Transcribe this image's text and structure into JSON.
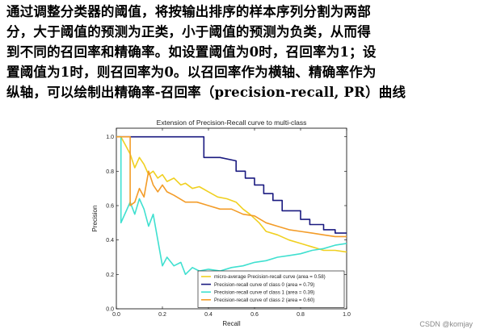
{
  "intro": {
    "lines": [
      "通过调整分类器的阈值，将按输出排序的样本序列分割为两部",
      "分，大于阈值的预测为正类，小于阈值的预测为负类，从而得",
      "到不同的召回率和精确率。如设置阈值为0时，召回率为1；设",
      "置阈值为1时，则召回率为0。以召回率作为横轴、精确率作为",
      "纵轴，可以绘制出精确率-召回率（precision-recall, PR）曲线"
    ]
  },
  "watermark": "CSDN @komjay",
  "chart_data": {
    "type": "line",
    "title": "Extension of Precision-Recall curve to multi-class",
    "xlabel": "Recall",
    "ylabel": "Precision",
    "xlim": [
      0.0,
      1.0
    ],
    "ylim": [
      0.0,
      1.05
    ],
    "xticks": [
      "0.0",
      "0.2",
      "0.4",
      "0.6",
      "0.8",
      "1.0"
    ],
    "yticks": [
      "0.0",
      "0.2",
      "0.4",
      "0.6",
      "0.8",
      "1.0"
    ],
    "grid": false,
    "legend_position": "lower-right",
    "series": [
      {
        "name": "micro-average Precision-recall curve (area = 0.58)",
        "color": "#f0d020",
        "points": [
          [
            0,
            1.0
          ],
          [
            0.02,
            1.0
          ],
          [
            0.04,
            0.95
          ],
          [
            0.06,
            0.9
          ],
          [
            0.08,
            0.82
          ],
          [
            0.1,
            0.88
          ],
          [
            0.12,
            0.84
          ],
          [
            0.14,
            0.78
          ],
          [
            0.16,
            0.8
          ],
          [
            0.18,
            0.76
          ],
          [
            0.2,
            0.78
          ],
          [
            0.22,
            0.74
          ],
          [
            0.25,
            0.76
          ],
          [
            0.28,
            0.72
          ],
          [
            0.3,
            0.73
          ],
          [
            0.33,
            0.7
          ],
          [
            0.36,
            0.71
          ],
          [
            0.4,
            0.68
          ],
          [
            0.44,
            0.65
          ],
          [
            0.48,
            0.64
          ],
          [
            0.52,
            0.62
          ],
          [
            0.55,
            0.58
          ],
          [
            0.58,
            0.55
          ],
          [
            0.62,
            0.5
          ],
          [
            0.65,
            0.45
          ],
          [
            0.7,
            0.43
          ],
          [
            0.75,
            0.4
          ],
          [
            0.8,
            0.38
          ],
          [
            0.85,
            0.36
          ],
          [
            0.9,
            0.34
          ],
          [
            0.95,
            0.34
          ],
          [
            1.0,
            0.33
          ]
        ]
      },
      {
        "name": "Precision-recall curve of class 0 (area = 0.79)",
        "color": "#1a1a80",
        "points": [
          [
            0,
            1.0
          ],
          [
            0.1,
            1.0
          ],
          [
            0.2,
            1.0
          ],
          [
            0.3,
            1.0
          ],
          [
            0.38,
            1.0
          ],
          [
            0.38,
            0.88
          ],
          [
            0.45,
            0.88
          ],
          [
            0.52,
            0.86
          ],
          [
            0.52,
            0.8
          ],
          [
            0.56,
            0.8
          ],
          [
            0.56,
            0.76
          ],
          [
            0.6,
            0.76
          ],
          [
            0.6,
            0.72
          ],
          [
            0.64,
            0.72
          ],
          [
            0.64,
            0.67
          ],
          [
            0.68,
            0.67
          ],
          [
            0.68,
            0.63
          ],
          [
            0.72,
            0.63
          ],
          [
            0.72,
            0.57
          ],
          [
            0.8,
            0.57
          ],
          [
            0.8,
            0.52
          ],
          [
            0.84,
            0.52
          ],
          [
            0.84,
            0.49
          ],
          [
            0.9,
            0.49
          ],
          [
            0.9,
            0.46
          ],
          [
            0.95,
            0.46
          ],
          [
            0.95,
            0.44
          ],
          [
            1.0,
            0.44
          ]
        ]
      },
      {
        "name": "Precision-recall curve of class 1 (area = 0.39)",
        "color": "#40e0d0",
        "points": [
          [
            0,
            1.0
          ],
          [
            0.02,
            1.0
          ],
          [
            0.02,
            0.5
          ],
          [
            0.04,
            0.56
          ],
          [
            0.06,
            0.62
          ],
          [
            0.08,
            0.55
          ],
          [
            0.1,
            0.64
          ],
          [
            0.12,
            0.58
          ],
          [
            0.14,
            0.48
          ],
          [
            0.16,
            0.55
          ],
          [
            0.18,
            0.4
          ],
          [
            0.2,
            0.25
          ],
          [
            0.22,
            0.3
          ],
          [
            0.25,
            0.25
          ],
          [
            0.28,
            0.27
          ],
          [
            0.3,
            0.2
          ],
          [
            0.33,
            0.24
          ],
          [
            0.36,
            0.22
          ],
          [
            0.4,
            0.23
          ],
          [
            0.45,
            0.22
          ],
          [
            0.5,
            0.24
          ],
          [
            0.55,
            0.25
          ],
          [
            0.6,
            0.27
          ],
          [
            0.65,
            0.28
          ],
          [
            0.7,
            0.3
          ],
          [
            0.75,
            0.31
          ],
          [
            0.8,
            0.32
          ],
          [
            0.85,
            0.34
          ],
          [
            0.9,
            0.35
          ],
          [
            0.95,
            0.37
          ],
          [
            1.0,
            0.38
          ]
        ]
      },
      {
        "name": "Precision-recall curve of class 2 (area = 0.60)",
        "color": "#f39c28",
        "points": [
          [
            0,
            1.0
          ],
          [
            0.06,
            1.0
          ],
          [
            0.06,
            0.6
          ],
          [
            0.08,
            0.62
          ],
          [
            0.1,
            0.7
          ],
          [
            0.12,
            0.65
          ],
          [
            0.14,
            0.8
          ],
          [
            0.16,
            0.72
          ],
          [
            0.18,
            0.68
          ],
          [
            0.2,
            0.72
          ],
          [
            0.22,
            0.68
          ],
          [
            0.25,
            0.66
          ],
          [
            0.3,
            0.62
          ],
          [
            0.35,
            0.62
          ],
          [
            0.4,
            0.6
          ],
          [
            0.45,
            0.58
          ],
          [
            0.5,
            0.58
          ],
          [
            0.55,
            0.55
          ],
          [
            0.6,
            0.54
          ],
          [
            0.65,
            0.5
          ],
          [
            0.7,
            0.48
          ],
          [
            0.75,
            0.46
          ],
          [
            0.8,
            0.45
          ],
          [
            0.85,
            0.44
          ],
          [
            0.9,
            0.43
          ],
          [
            0.95,
            0.42
          ],
          [
            1.0,
            0.42
          ]
        ]
      }
    ]
  }
}
